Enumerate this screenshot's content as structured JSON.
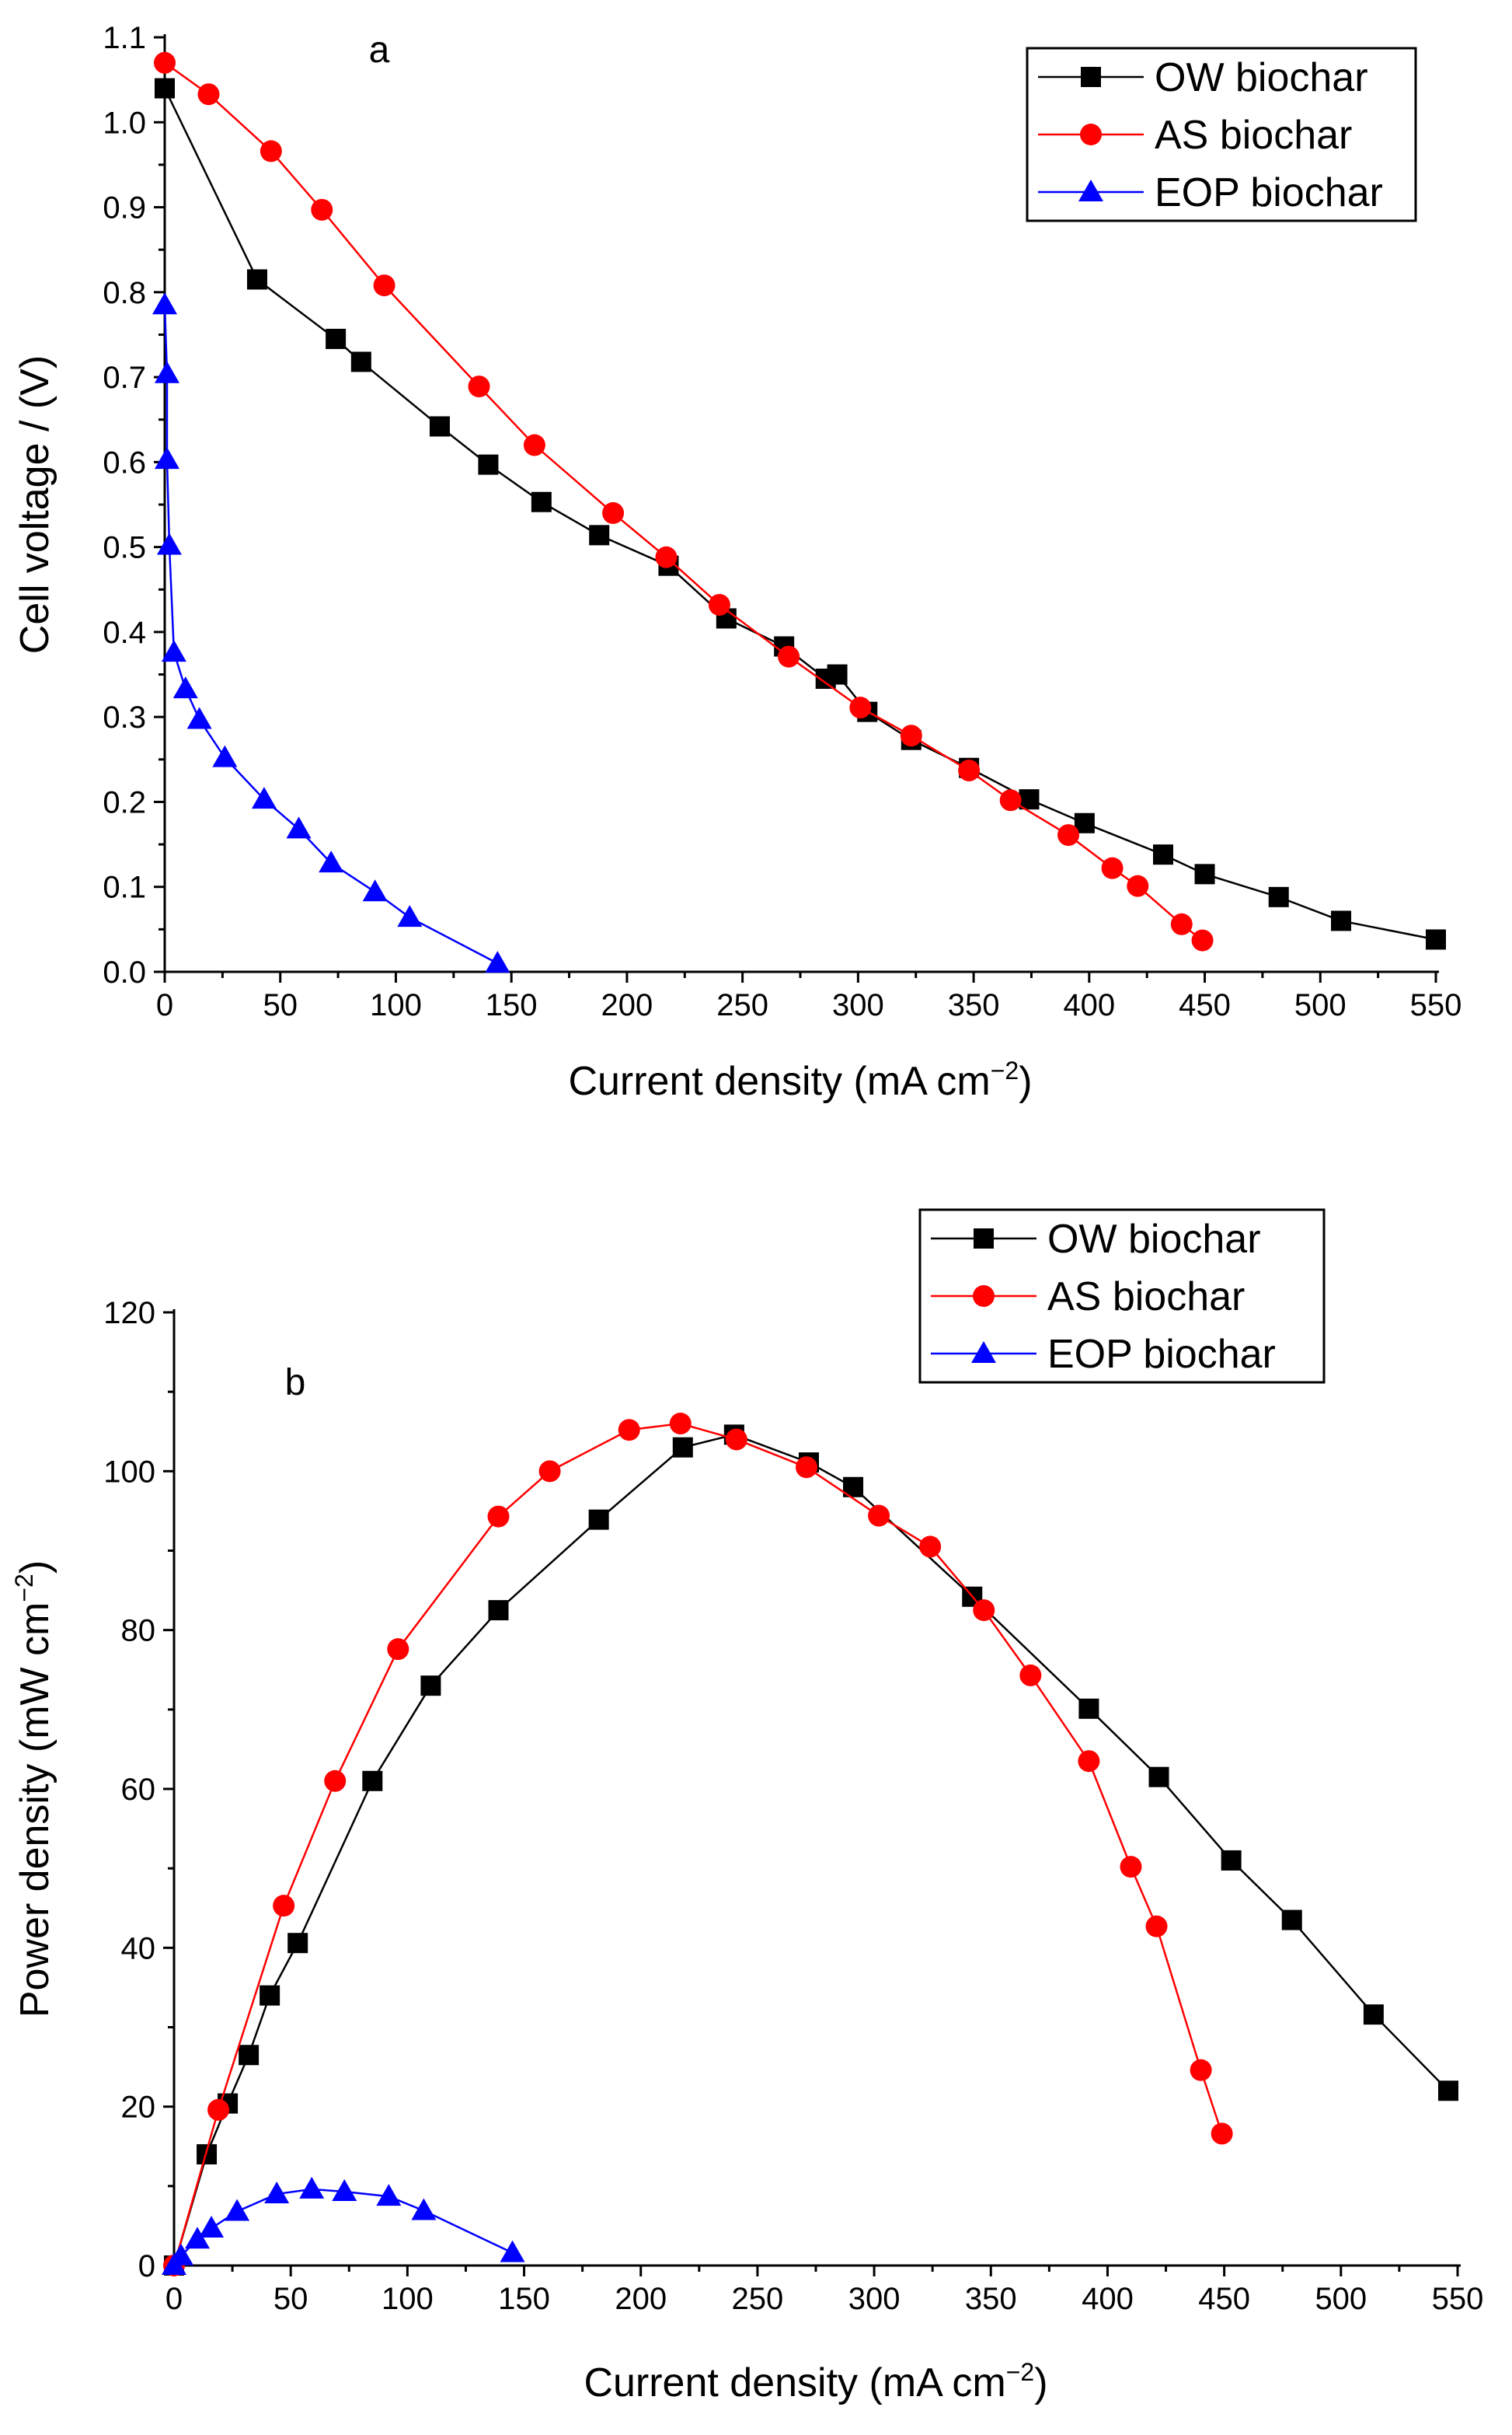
{
  "chart_data": [
    {
      "type": "line",
      "panel_label": "a",
      "xlabel": "Current density (mA cm",
      "xlabel_sup": "−2",
      "xlabel_end": ")",
      "ylabel": "Cell voltage / (V)",
      "xlim": [
        0,
        550
      ],
      "ylim": [
        0,
        1.1
      ],
      "x_ticks": [
        "0",
        "50",
        "100",
        "150",
        "200",
        "250",
        "300",
        "350",
        "400",
        "450",
        "500",
        "550"
      ],
      "y_ticks": [
        "0.0",
        "0.1",
        "0.2",
        "0.3",
        "0.4",
        "0.5",
        "0.6",
        "0.7",
        "0.8",
        "0.9",
        "1.0",
        "1.1"
      ],
      "legend": "top-right",
      "series": [
        {
          "name": "OW biochar",
          "color": "#000000",
          "marker": "square",
          "points": [
            [
              0,
              1.04
            ],
            [
              40,
              0.815
            ],
            [
              74,
              0.745
            ],
            [
              85,
              0.718
            ],
            [
              119,
              0.642
            ],
            [
              140,
              0.597
            ],
            [
              163,
              0.553
            ],
            [
              188,
              0.514
            ],
            [
              218,
              0.478
            ],
            [
              243,
              0.416
            ],
            [
              268,
              0.383
            ],
            [
              286,
              0.345
            ],
            [
              291,
              0.35
            ],
            [
              304,
              0.306
            ],
            [
              323,
              0.273
            ],
            [
              348,
              0.24
            ],
            [
              374,
              0.203
            ],
            [
              398,
              0.175
            ],
            [
              432,
              0.138
            ],
            [
              450,
              0.115
            ],
            [
              482,
              0.088
            ],
            [
              509,
              0.06
            ],
            [
              550,
              0.038
            ]
          ]
        },
        {
          "name": "AS biochar",
          "color": "#ff0000",
          "marker": "circle",
          "points": [
            [
              0,
              1.07
            ],
            [
              19,
              1.033
            ],
            [
              46,
              0.966
            ],
            [
              68,
              0.897
            ],
            [
              95,
              0.808
            ],
            [
              136,
              0.689
            ],
            [
              160,
              0.62
            ],
            [
              194,
              0.54
            ],
            [
              217,
              0.488
            ],
            [
              240,
              0.432
            ],
            [
              270,
              0.371
            ],
            [
              301,
              0.311
            ],
            [
              323,
              0.278
            ],
            [
              348,
              0.237
            ],
            [
              366,
              0.202
            ],
            [
              391,
              0.161
            ],
            [
              410,
              0.122
            ],
            [
              421,
              0.101
            ],
            [
              440,
              0.056
            ],
            [
              449,
              0.037
            ]
          ]
        },
        {
          "name": "EOP biochar",
          "color": "#0000ff",
          "marker": "triangle",
          "points": [
            [
              0,
              0.785
            ],
            [
              1,
              0.704
            ],
            [
              1,
              0.603
            ],
            [
              2,
              0.502
            ],
            [
              4,
              0.376
            ],
            [
              9,
              0.333
            ],
            [
              15,
              0.297
            ],
            [
              26,
              0.252
            ],
            [
              43,
              0.203
            ],
            [
              58,
              0.168
            ],
            [
              72,
              0.128
            ],
            [
              91,
              0.094
            ],
            [
              106,
              0.064
            ],
            [
              144,
              0.01
            ]
          ]
        }
      ]
    },
    {
      "type": "line",
      "panel_label": "b",
      "xlabel": "Current density (mA cm",
      "xlabel_sup": "−2",
      "xlabel_end": ")",
      "ylabel": "Power density (mW cm",
      "ylabel_sup": "−2",
      "ylabel_end": ")",
      "xlim": [
        0,
        550
      ],
      "ylim": [
        0,
        120
      ],
      "x_ticks": [
        "0",
        "50",
        "100",
        "150",
        "200",
        "250",
        "300",
        "350",
        "400",
        "450",
        "500",
        "550"
      ],
      "y_ticks": [
        "0",
        "20",
        "40",
        "60",
        "80",
        "100",
        "120"
      ],
      "legend": "top-right",
      "series": [
        {
          "name": "OW biochar",
          "color": "#000000",
          "marker": "square",
          "points": [
            [
              0,
              0
            ],
            [
              14,
              14
            ],
            [
              23,
              20.4
            ],
            [
              32,
              26.5
            ],
            [
              41,
              34
            ],
            [
              53,
              40.6
            ],
            [
              85,
              61
            ],
            [
              110,
              73
            ],
            [
              139,
              82.5
            ],
            [
              182,
              93.9
            ],
            [
              218,
              103
            ],
            [
              240,
              104.6
            ],
            [
              272,
              101.1
            ],
            [
              291,
              98
            ],
            [
              342,
              84.2
            ],
            [
              392,
              70.1
            ],
            [
              422,
              61.5
            ],
            [
              453,
              51
            ],
            [
              479,
              43.5
            ],
            [
              514,
              31.6
            ],
            [
              546,
              22
            ]
          ]
        },
        {
          "name": "AS biochar",
          "color": "#ff0000",
          "marker": "circle",
          "points": [
            [
              0,
              0
            ],
            [
              19,
              19.6
            ],
            [
              47,
              45.3
            ],
            [
              69,
              61
            ],
            [
              96,
              77.6
            ],
            [
              139,
              94.3
            ],
            [
              161,
              100
            ],
            [
              195,
              105.2
            ],
            [
              217,
              106
            ],
            [
              241,
              104
            ],
            [
              271,
              100.5
            ],
            [
              302,
              94.4
            ],
            [
              324,
              90.5
            ],
            [
              347,
              82.5
            ],
            [
              367,
              74.3
            ],
            [
              392,
              63.5
            ],
            [
              410,
              50.2
            ],
            [
              421,
              42.7
            ],
            [
              440,
              24.6
            ],
            [
              449,
              16.6
            ]
          ]
        },
        {
          "name": "EOP biochar",
          "color": "#0000ff",
          "marker": "triangle",
          "points": [
            [
              0,
              0
            ],
            [
              3,
              1.2
            ],
            [
              10,
              3.3
            ],
            [
              16,
              4.7
            ],
            [
              27,
              6.8
            ],
            [
              44,
              9
            ],
            [
              59,
              9.6
            ],
            [
              73,
              9.3
            ],
            [
              92,
              8.7
            ],
            [
              107,
              6.9
            ],
            [
              145,
              1.6
            ]
          ]
        }
      ]
    }
  ]
}
